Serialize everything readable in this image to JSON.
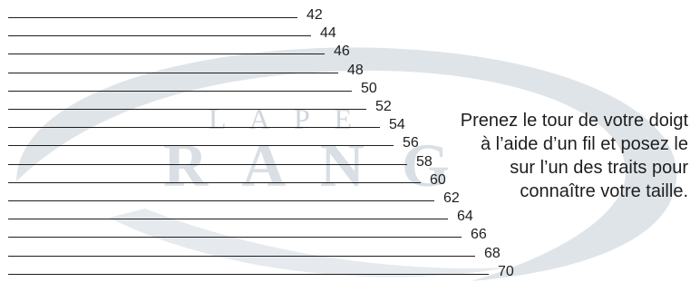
{
  "ring_sizer": {
    "sizes": [
      "42",
      "44",
      "46",
      "48",
      "50",
      "52",
      "54",
      "56",
      "58",
      "60",
      "62",
      "64",
      "66",
      "68",
      "70"
    ]
  },
  "instruction": {
    "lines": [
      "Prenez le tour de votre doigt",
      "à l’aide d’un fil et posez le",
      "sur l’un des traits pour",
      "connaître votre taille."
    ]
  },
  "watermark": {
    "line1": "L A   P E",
    "line2": "R A N G",
    "icon": "swoosh-logo",
    "color": "#d7dde3"
  }
}
